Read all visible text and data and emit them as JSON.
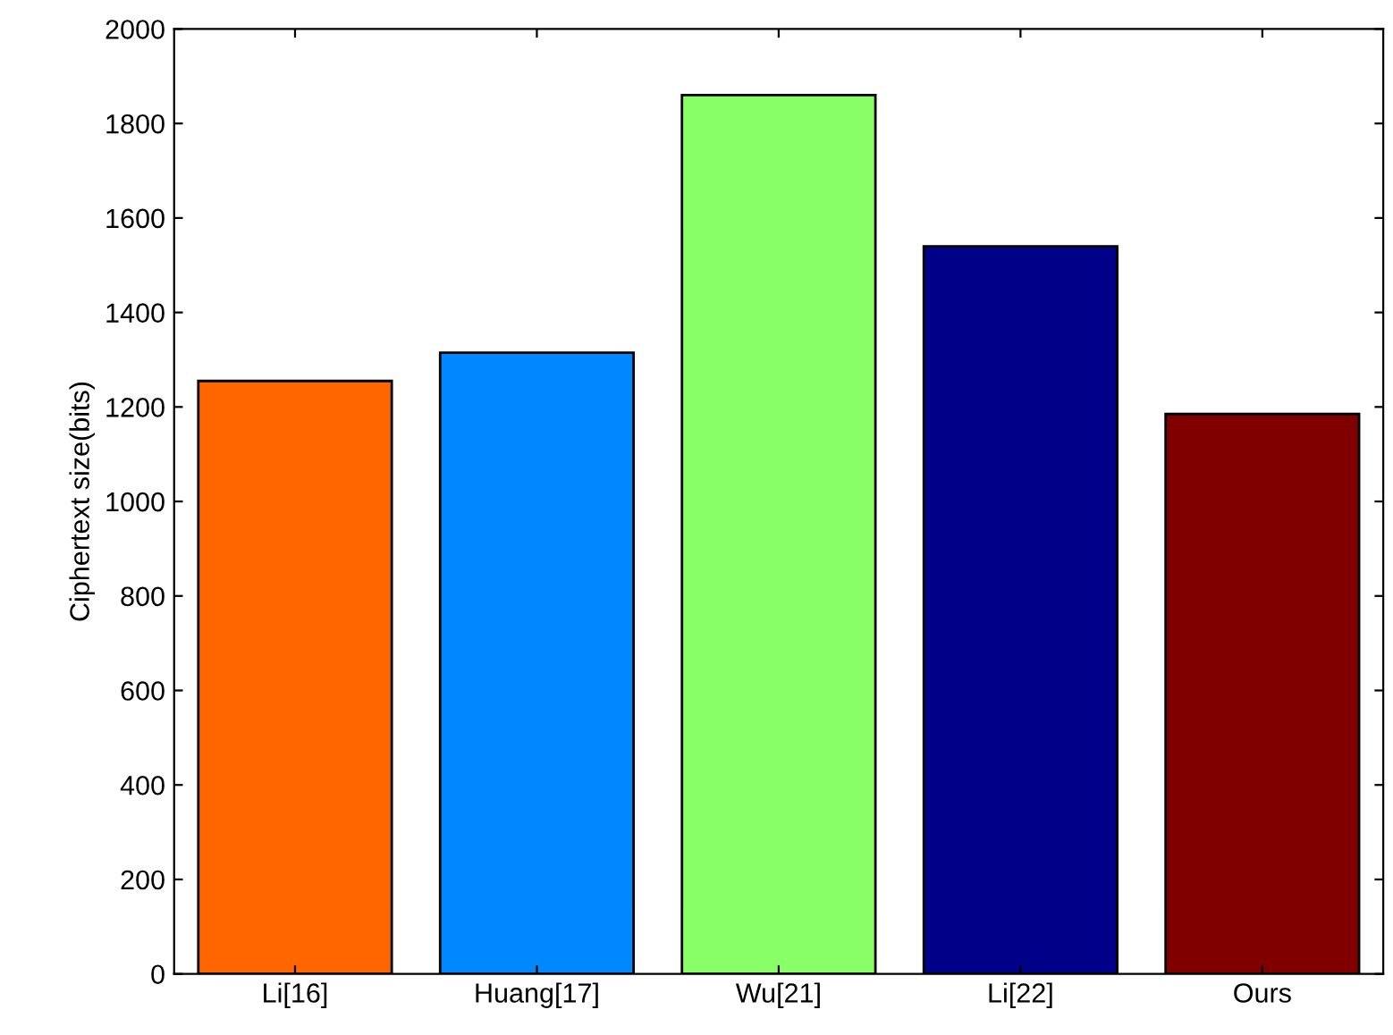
{
  "chart_data": {
    "type": "bar",
    "ylabel": "Ciphertext size(bits)",
    "categories": [
      "Li[16]",
      "Huang[17]",
      "Wu[21]",
      "Li[22]",
      "Ours"
    ],
    "values": [
      1255,
      1315,
      1860,
      1540,
      1185
    ],
    "colors": [
      "#ff6600",
      "#0088ff",
      "#88ff66",
      "#000088",
      "#800000"
    ],
    "ylim": [
      0,
      2000
    ],
    "yticks": [
      0,
      200,
      400,
      600,
      800,
      1000,
      1200,
      1400,
      1600,
      1800,
      2000
    ],
    "grid": false
  }
}
